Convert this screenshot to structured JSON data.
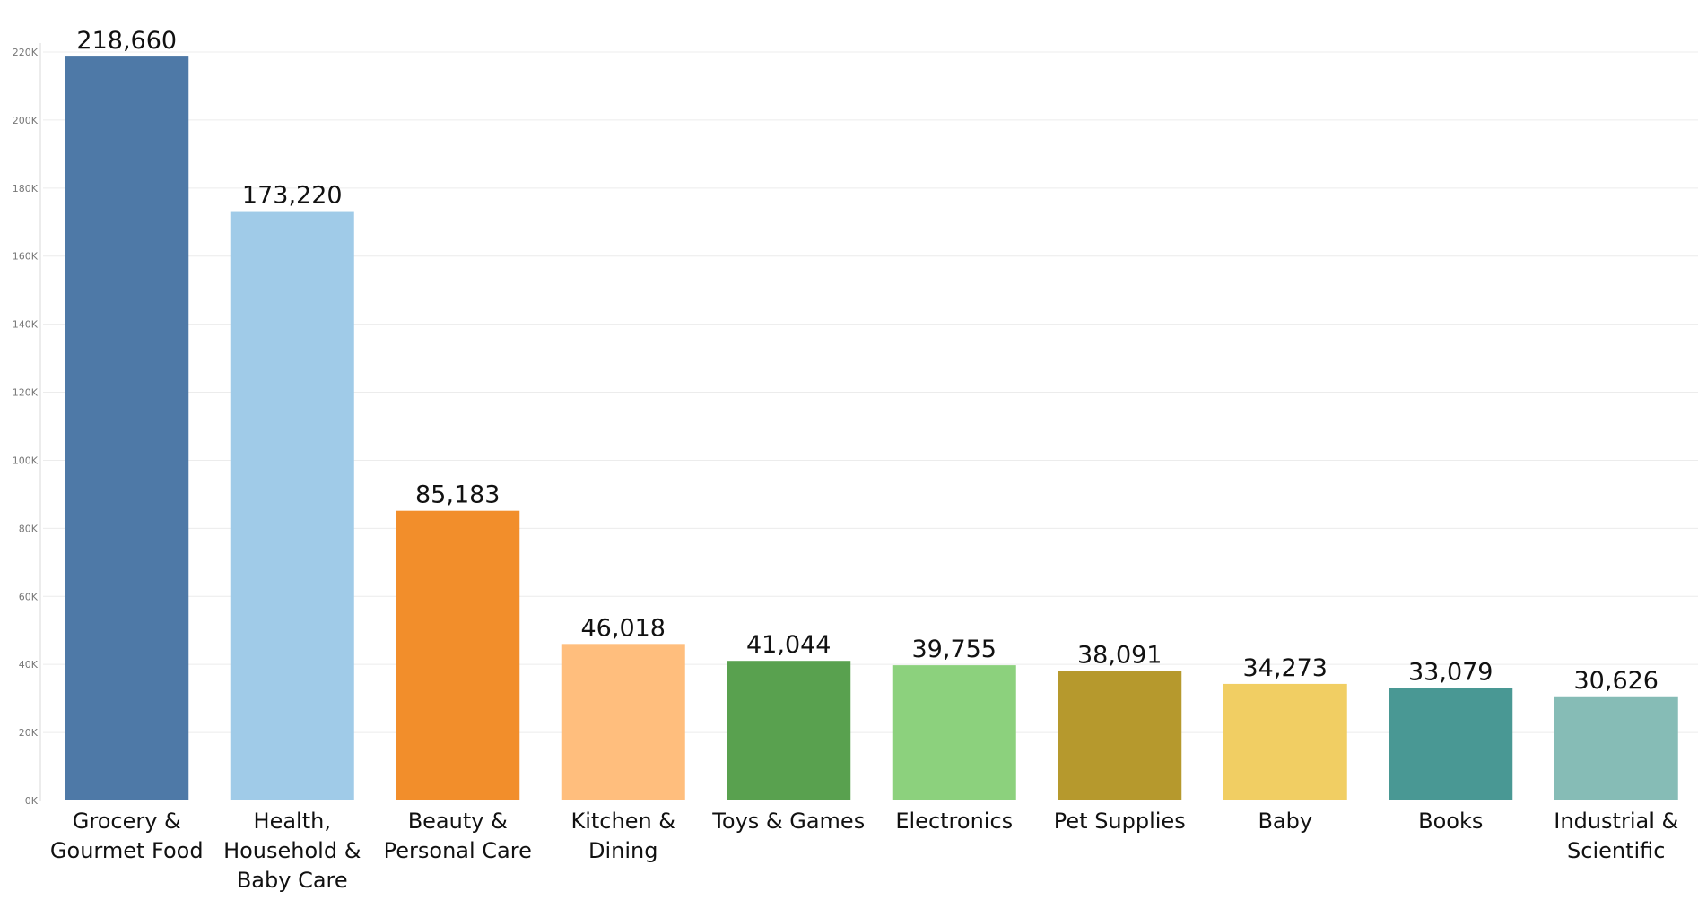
{
  "chart_data": {
    "type": "bar",
    "categories": [
      [
        "Grocery &",
        "Gourmet Food"
      ],
      [
        "Health,",
        "Household &",
        "Baby Care"
      ],
      [
        "Beauty &",
        "Personal Care"
      ],
      [
        "Kitchen &",
        "Dining"
      ],
      [
        "Toys & Games"
      ],
      [
        "Electronics"
      ],
      [
        "Pet Supplies"
      ],
      [
        "Baby"
      ],
      [
        "Books"
      ],
      [
        "Industrial &",
        "Scientific"
      ]
    ],
    "values": [
      218660,
      173220,
      85183,
      46018,
      41044,
      39755,
      38091,
      34273,
      33079,
      30626
    ],
    "value_labels": [
      "218,660",
      "173,220",
      "85,183",
      "46,018",
      "41,044",
      "39,755",
      "38,091",
      "34,273",
      "33,079",
      "30,626"
    ],
    "colors": [
      "#4e79a7",
      "#a0cbe8",
      "#f28e2b",
      "#ffbe7d",
      "#59a14f",
      "#8cd17d",
      "#b6992d",
      "#f1ce63",
      "#499894",
      "#86bcb6"
    ],
    "ylim": [
      0,
      220000
    ],
    "yticks": [
      0,
      20000,
      40000,
      60000,
      80000,
      100000,
      120000,
      140000,
      160000,
      180000,
      200000,
      220000
    ],
    "ytick_labels": [
      "0K",
      "20K",
      "40K",
      "60K",
      "80K",
      "100K",
      "120K",
      "140K",
      "160K",
      "180K",
      "200K",
      "220K"
    ],
    "title": "",
    "xlabel": "",
    "ylabel": "",
    "grid": true
  }
}
